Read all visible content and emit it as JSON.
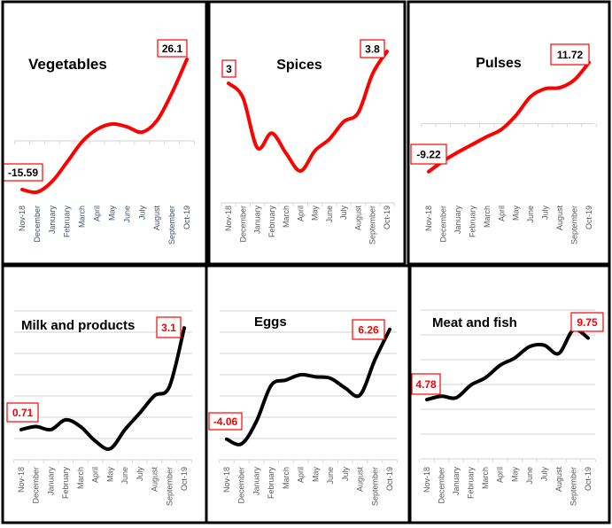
{
  "chart_data": [
    {
      "type": "line",
      "title": "Vegetables",
      "categories": [
        "Nov-18",
        "December",
        "January",
        "February",
        "March",
        "April",
        "May",
        "June",
        "July",
        "August",
        "September",
        "Oct-19"
      ],
      "values": [
        -15.59,
        -16.4,
        -13.0,
        -6.8,
        -0.3,
        3.7,
        5.4,
        4.5,
        2.8,
        6.5,
        15.3,
        26.1
      ],
      "data_labels": {
        "first": "-15.59",
        "last": "26.1"
      },
      "line_color": "#ff0000",
      "label_text_color": "#000000",
      "category_color": "#44546a",
      "gridlines": [
        0
      ],
      "grid": false
    },
    {
      "type": "line",
      "title": "Spices",
      "categories": [
        "Nov-18",
        "December",
        "January",
        "February",
        "March",
        "April",
        "May",
        "June",
        "July",
        "August",
        "September",
        "Oct-19"
      ],
      "values": [
        3.0,
        2.64,
        1.38,
        1.75,
        1.24,
        0.8,
        1.31,
        1.6,
        2.04,
        2.26,
        3.24,
        3.8
      ],
      "data_labels": {
        "first": "3",
        "last": "3.8"
      },
      "line_color": "#ff0000",
      "label_text_color": "#000000",
      "category_color": "#595959",
      "gridlines": [
        0
      ],
      "grid": false
    },
    {
      "type": "line",
      "title": "Pulses",
      "categories": [
        "Nov-18",
        "December",
        "January",
        "February",
        "March",
        "April",
        "May",
        "June",
        "July",
        "August",
        "September",
        "Oct-19"
      ],
      "values": [
        -9.22,
        -7.2,
        -5.5,
        -4.0,
        -2.5,
        -1.1,
        1.6,
        5.2,
        6.7,
        6.9,
        8.4,
        11.72
      ],
      "data_labels": {
        "first": "-9.22",
        "last": "11.72"
      },
      "line_color": "#ff0000",
      "label_text_color": "#000000",
      "category_color": "#595959",
      "gridlines": [
        0
      ],
      "grid": false
    },
    {
      "type": "line",
      "title": "Milk and products",
      "categories": [
        "Nov-18",
        "December",
        "January",
        "February",
        "March",
        "April",
        "May",
        "June",
        "July",
        "August",
        "September",
        "Oct-19"
      ],
      "values": [
        0.71,
        0.78,
        0.71,
        0.94,
        0.78,
        0.44,
        0.26,
        0.71,
        1.1,
        1.51,
        1.72,
        3.1
      ],
      "data_labels": {
        "first": "0.71",
        "last": "3.1"
      },
      "line_color": "#000000",
      "label_text_color": "#ff0000",
      "category_color": "#595959",
      "ylim": [
        0,
        3.5
      ],
      "gridlines": [
        0,
        0.5,
        1,
        1.5,
        2,
        2.5,
        3,
        3.5
      ],
      "grid": true
    },
    {
      "type": "line",
      "title": "Eggs",
      "categories": [
        "Nov-18",
        "December",
        "January",
        "February",
        "March",
        "April",
        "May",
        "June",
        "July",
        "August",
        "September",
        "Oct-19"
      ],
      "values": [
        -4.06,
        -4.5,
        -2.4,
        1.0,
        1.5,
        2.0,
        1.8,
        1.67,
        0.75,
        0.1,
        3.4,
        6.26
      ],
      "data_labels": {
        "first": "-4.06",
        "last": "6.26"
      },
      "line_color": "#000000",
      "label_text_color": "#ff0000",
      "category_color": "#595959",
      "ylim": [
        -6,
        8
      ],
      "gridlines": [
        -6,
        -4,
        -2,
        0,
        2,
        4,
        6,
        8
      ],
      "grid": true
    },
    {
      "type": "line",
      "title": "Meat and fish",
      "categories": [
        "Nov-18",
        "December",
        "January",
        "February",
        "March",
        "April",
        "May",
        "June",
        "July",
        "August",
        "September",
        "Oct-19"
      ],
      "values": [
        4.78,
        5.05,
        4.93,
        5.95,
        6.55,
        7.55,
        8.14,
        9.05,
        9.17,
        8.5,
        10.4,
        9.75
      ],
      "data_labels": {
        "first": "4.78",
        "last": "9.75"
      },
      "line_color": "#000000",
      "label_text_color": "#ff0000",
      "category_color": "#595959",
      "ylim": [
        0,
        12
      ],
      "gridlines": [
        0,
        2,
        4,
        6,
        8,
        10,
        12
      ],
      "grid": true
    }
  ]
}
